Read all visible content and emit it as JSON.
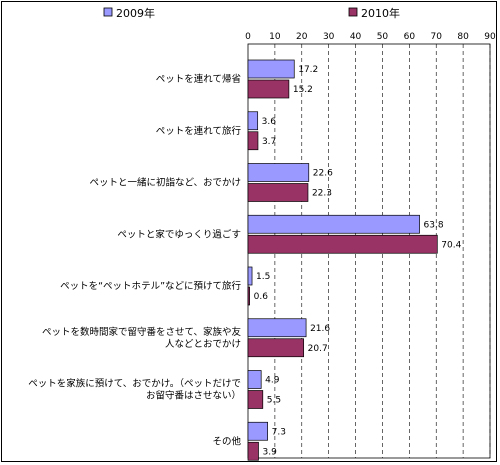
{
  "chart_data": {
    "type": "bar",
    "orientation": "horizontal",
    "title": "",
    "xlabel": "",
    "ylabel": "",
    "xlim": [
      0,
      90
    ],
    "ticks": [
      0,
      10,
      20,
      30,
      40,
      50,
      60,
      70,
      80,
      90
    ],
    "grid": true,
    "legend_position": "top",
    "categories": [
      [
        "ペットを連れて帰省"
      ],
      [
        "ペットを連れて旅行"
      ],
      [
        "ペットと一緒に初詣など、おでかけ"
      ],
      [
        "ペットと家でゆっくり過ごす"
      ],
      [
        "ペットを“ペットホテル”などに預けて旅行"
      ],
      [
        "ペットを数時間家で留守番をさせて、家族や友",
        "人などとおでかけ"
      ],
      [
        "ペットを家族に預けて、おでかけ。（ペットだけで",
        "お留守番はさせない）"
      ],
      [
        "その他"
      ]
    ],
    "series": [
      {
        "name": "2009年",
        "color": "#9999ff",
        "values": [
          17.2,
          3.6,
          22.6,
          63.8,
          1.5,
          21.6,
          4.9,
          7.3
        ]
      },
      {
        "name": "2010年",
        "color": "#993366",
        "values": [
          15.2,
          3.7,
          22.3,
          70.4,
          0.6,
          20.7,
          5.5,
          3.9
        ]
      }
    ]
  }
}
